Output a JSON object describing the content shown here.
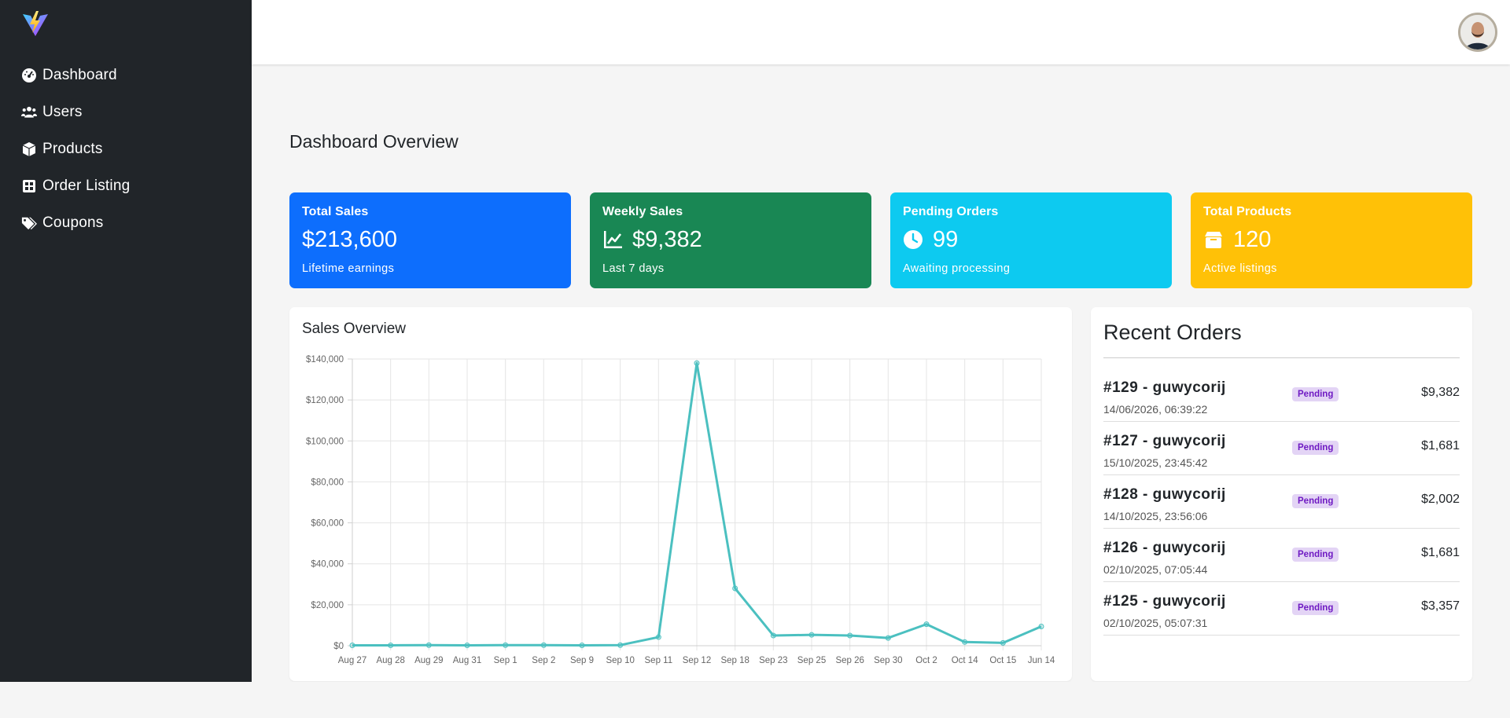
{
  "colors": {
    "sidebar_bg": "#212529",
    "card_total_sales": "#0d6efd",
    "card_weekly_sales": "#198754",
    "card_pending_orders": "#0dcaf0",
    "card_total_products": "#ffc107",
    "chart_line": "#4bc0c0",
    "badge_bg": "#e3d4f5",
    "badge_text": "#6f1ac3"
  },
  "sidebar": {
    "logo_icon": "vite-logo-icon",
    "items": [
      {
        "label": "Dashboard",
        "icon": "gauge-icon"
      },
      {
        "label": "Users",
        "icon": "users-icon"
      },
      {
        "label": "Products",
        "icon": "box-icon"
      },
      {
        "label": "Order Listing",
        "icon": "grid-icon"
      },
      {
        "label": "Coupons",
        "icon": "tags-icon"
      }
    ]
  },
  "header": {
    "avatar_icon": "user-avatar-icon"
  },
  "main": {
    "title": "Dashboard Overview",
    "stats": [
      {
        "title": "Total Sales",
        "value": "$213,600",
        "subtitle": "Lifetime earnings",
        "icon": ""
      },
      {
        "title": "Weekly Sales",
        "value": "$9,382",
        "subtitle": "Last 7 days",
        "icon": "chart-line-icon"
      },
      {
        "title": "Pending Orders",
        "value": "99",
        "subtitle": "Awaiting processing",
        "icon": "clock-icon"
      },
      {
        "title": "Total Products",
        "value": "120",
        "subtitle": "Active listings",
        "icon": "box-icon"
      }
    ]
  },
  "chart_data": {
    "type": "line",
    "title": "Sales Overview",
    "xlabel": "",
    "ylabel": "",
    "categories": [
      "Aug 27",
      "Aug 28",
      "Aug 29",
      "Aug 31",
      "Sep 1",
      "Sep 2",
      "Sep 9",
      "Sep 10",
      "Sep 11",
      "Sep 12",
      "Sep 18",
      "Sep 23",
      "Sep 25",
      "Sep 26",
      "Sep 30",
      "Oct 2",
      "Oct 14",
      "Oct 15",
      "Jun 14"
    ],
    "values": [
      200,
      200,
      300,
      200,
      300,
      300,
      200,
      300,
      4200,
      138000,
      28000,
      5000,
      5300,
      5000,
      3800,
      10500,
      1800,
      1400,
      9400
    ],
    "ylim": [
      0,
      140000
    ],
    "yticks": [
      "$0",
      "$20,000",
      "$40,000",
      "$60,000",
      "$80,000",
      "$100,000",
      "$120,000",
      "$140,000"
    ],
    "grid": true,
    "legend": "none"
  },
  "orders": {
    "title": "Recent Orders",
    "items": [
      {
        "id": "#129 - guwycorij",
        "date": "14/06/2026, 06:39:22",
        "status": "Pending",
        "amount": "$9,382"
      },
      {
        "id": "#127 - guwycorij",
        "date": "15/10/2025, 23:45:42",
        "status": "Pending",
        "amount": "$1,681"
      },
      {
        "id": "#128 - guwycorij",
        "date": "14/10/2025, 23:56:06",
        "status": "Pending",
        "amount": "$2,002"
      },
      {
        "id": "#126 - guwycorij",
        "date": "02/10/2025, 07:05:44",
        "status": "Pending",
        "amount": "$1,681"
      },
      {
        "id": "#125 - guwycorij",
        "date": "02/10/2025, 05:07:31",
        "status": "Pending",
        "amount": "$3,357"
      }
    ]
  }
}
